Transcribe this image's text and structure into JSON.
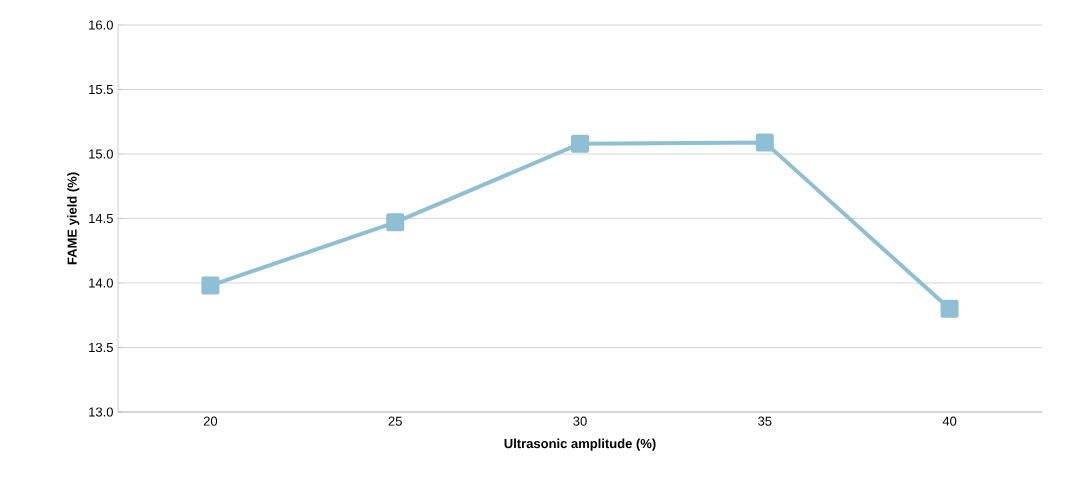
{
  "chart_data": {
    "type": "line",
    "xlabel": "Ultrasonic amplitude (%)",
    "ylabel": "FAME yield (%)",
    "categories": [
      "20",
      "25",
      "30",
      "35",
      "40"
    ],
    "series": [
      {
        "color": "#8fbfd2",
        "values": [
          13.98,
          14.47,
          15.08,
          15.09,
          13.8
        ]
      }
    ],
    "ylim": [
      13,
      16
    ],
    "yticks": [
      {
        "value": 13,
        "label": "13.0"
      },
      {
        "value": 13.5,
        "label": "13.5"
      },
      {
        "value": 14,
        "label": "14.0"
      },
      {
        "value": 14.5,
        "label": "14.5"
      },
      {
        "value": 15,
        "label": "15.0"
      },
      {
        "value": 15.5,
        "label": "15.5"
      },
      {
        "value": 16,
        "label": "16.0"
      }
    ],
    "grid": "y",
    "marker": "square",
    "line_style": "solid"
  }
}
